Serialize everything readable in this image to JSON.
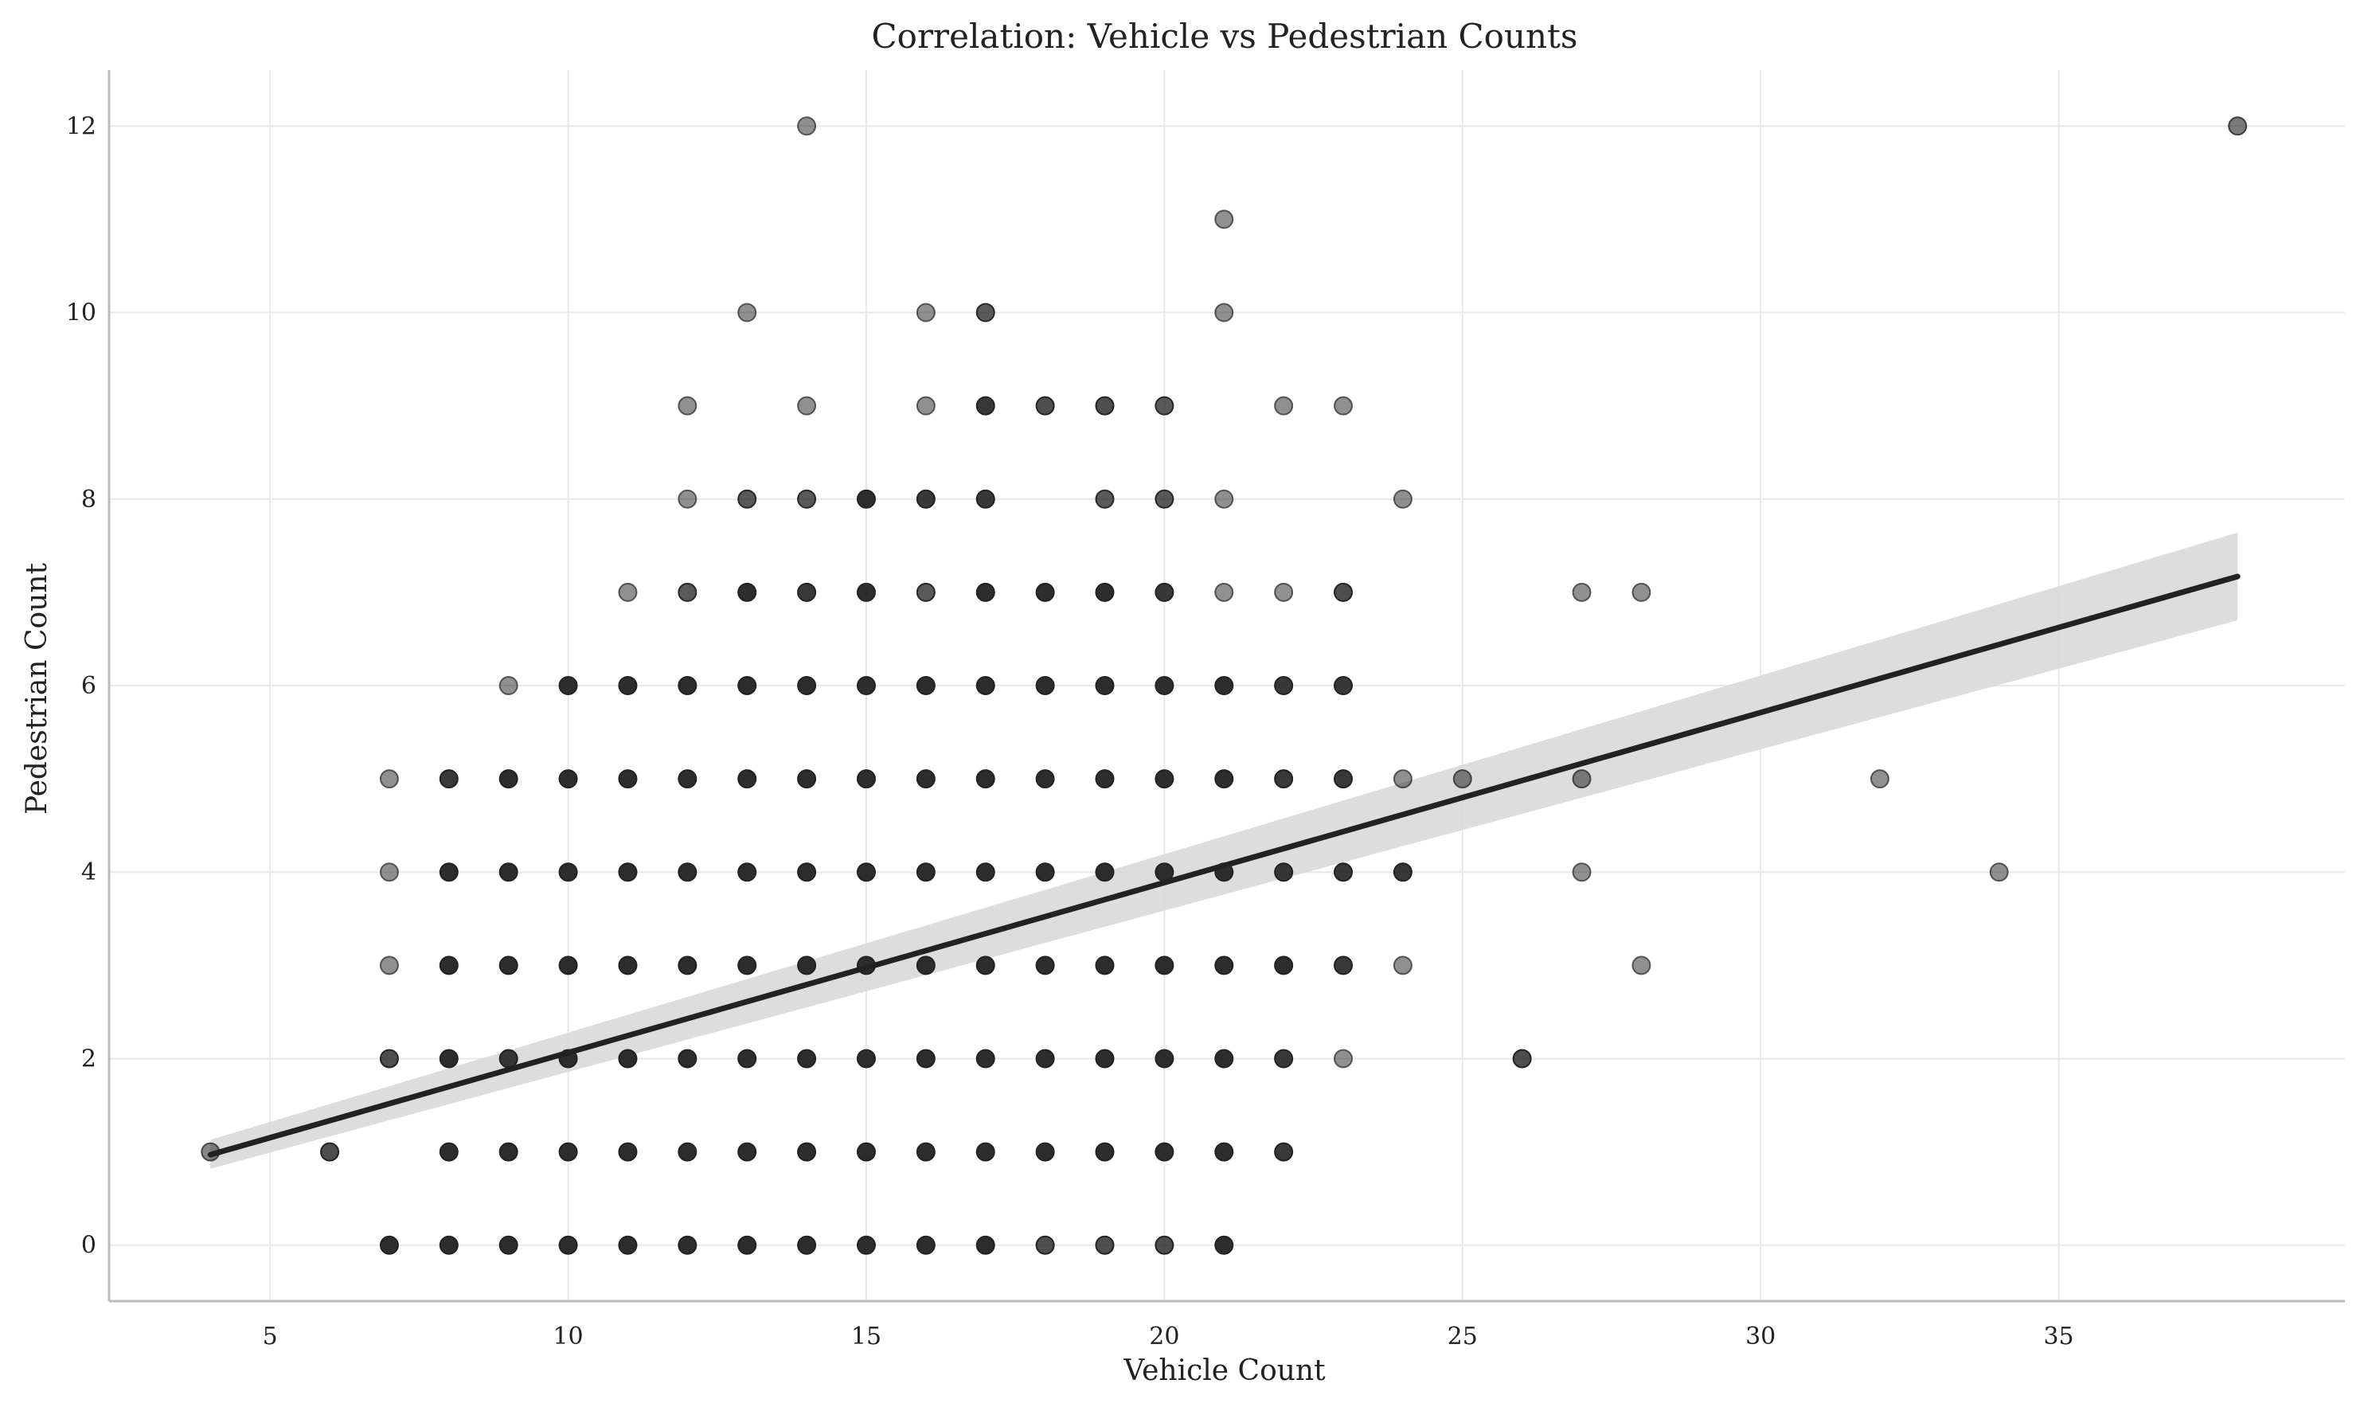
{
  "chart_data": {
    "type": "scatter",
    "title": "Correlation: Vehicle vs Pedestrian Counts",
    "xlabel": "Vehicle Count",
    "ylabel": "Pedestrian Count",
    "xlim": [
      2.3,
      39.8
    ],
    "ylim": [
      -0.6,
      12.6
    ],
    "xticks": [
      5,
      10,
      15,
      20,
      25,
      30,
      35
    ],
    "yticks": [
      0,
      2,
      4,
      6,
      8,
      10,
      12
    ],
    "grid": true,
    "legend": "none",
    "colors": {
      "point": "#222222",
      "line": "#222222",
      "band": "#d9d9d9",
      "grid": "#e8e8e8",
      "spine": "#bbbbbb"
    },
    "points": [
      [
        4,
        1
      ],
      [
        6,
        1
      ],
      [
        7,
        0
      ],
      [
        7,
        2
      ],
      [
        7,
        3
      ],
      [
        7,
        4
      ],
      [
        7,
        5
      ],
      [
        8,
        0
      ],
      [
        8,
        1
      ],
      [
        8,
        2
      ],
      [
        8,
        3
      ],
      [
        8,
        4
      ],
      [
        8,
        5
      ],
      [
        9,
        0
      ],
      [
        9,
        1
      ],
      [
        9,
        2
      ],
      [
        9,
        3
      ],
      [
        9,
        4
      ],
      [
        9,
        5
      ],
      [
        9,
        6
      ],
      [
        10,
        0
      ],
      [
        10,
        1
      ],
      [
        10,
        2
      ],
      [
        10,
        3
      ],
      [
        10,
        4
      ],
      [
        10,
        5
      ],
      [
        10,
        6
      ],
      [
        11,
        0
      ],
      [
        11,
        1
      ],
      [
        11,
        2
      ],
      [
        11,
        3
      ],
      [
        11,
        4
      ],
      [
        11,
        5
      ],
      [
        11,
        6
      ],
      [
        11,
        7
      ],
      [
        12,
        0
      ],
      [
        12,
        1
      ],
      [
        12,
        2
      ],
      [
        12,
        3
      ],
      [
        12,
        4
      ],
      [
        12,
        5
      ],
      [
        12,
        6
      ],
      [
        12,
        7
      ],
      [
        12,
        8
      ],
      [
        12,
        9
      ],
      [
        13,
        0
      ],
      [
        13,
        1
      ],
      [
        13,
        2
      ],
      [
        13,
        3
      ],
      [
        13,
        4
      ],
      [
        13,
        5
      ],
      [
        13,
        6
      ],
      [
        13,
        7
      ],
      [
        13,
        8
      ],
      [
        13,
        10
      ],
      [
        14,
        0
      ],
      [
        14,
        1
      ],
      [
        14,
        2
      ],
      [
        14,
        3
      ],
      [
        14,
        4
      ],
      [
        14,
        5
      ],
      [
        14,
        6
      ],
      [
        14,
        7
      ],
      [
        14,
        8
      ],
      [
        14,
        9
      ],
      [
        14,
        12
      ],
      [
        15,
        0
      ],
      [
        15,
        1
      ],
      [
        15,
        2
      ],
      [
        15,
        3
      ],
      [
        15,
        4
      ],
      [
        15,
        5
      ],
      [
        15,
        6
      ],
      [
        15,
        7
      ],
      [
        15,
        8
      ],
      [
        16,
        0
      ],
      [
        16,
        1
      ],
      [
        16,
        2
      ],
      [
        16,
        3
      ],
      [
        16,
        4
      ],
      [
        16,
        5
      ],
      [
        16,
        6
      ],
      [
        16,
        7
      ],
      [
        16,
        8
      ],
      [
        16,
        9
      ],
      [
        16,
        10
      ],
      [
        17,
        0
      ],
      [
        17,
        1
      ],
      [
        17,
        2
      ],
      [
        17,
        3
      ],
      [
        17,
        4
      ],
      [
        17,
        5
      ],
      [
        17,
        6
      ],
      [
        17,
        7
      ],
      [
        17,
        8
      ],
      [
        17,
        9
      ],
      [
        17,
        10
      ],
      [
        18,
        0
      ],
      [
        18,
        1
      ],
      [
        18,
        2
      ],
      [
        18,
        3
      ],
      [
        18,
        4
      ],
      [
        18,
        5
      ],
      [
        18,
        6
      ],
      [
        18,
        7
      ],
      [
        18,
        9
      ],
      [
        19,
        0
      ],
      [
        19,
        1
      ],
      [
        19,
        2
      ],
      [
        19,
        3
      ],
      [
        19,
        4
      ],
      [
        19,
        5
      ],
      [
        19,
        6
      ],
      [
        19,
        7
      ],
      [
        19,
        8
      ],
      [
        19,
        9
      ],
      [
        20,
        0
      ],
      [
        20,
        1
      ],
      [
        20,
        2
      ],
      [
        20,
        3
      ],
      [
        20,
        4
      ],
      [
        20,
        5
      ],
      [
        20,
        6
      ],
      [
        20,
        7
      ],
      [
        20,
        8
      ],
      [
        20,
        9
      ],
      [
        21,
        0
      ],
      [
        21,
        1
      ],
      [
        21,
        2
      ],
      [
        21,
        3
      ],
      [
        21,
        4
      ],
      [
        21,
        5
      ],
      [
        21,
        6
      ],
      [
        21,
        7
      ],
      [
        21,
        8
      ],
      [
        21,
        10
      ],
      [
        21,
        11
      ],
      [
        22,
        1
      ],
      [
        22,
        2
      ],
      [
        22,
        3
      ],
      [
        22,
        4
      ],
      [
        22,
        5
      ],
      [
        22,
        6
      ],
      [
        22,
        7
      ],
      [
        22,
        9
      ],
      [
        23,
        2
      ],
      [
        23,
        3
      ],
      [
        23,
        4
      ],
      [
        23,
        5
      ],
      [
        23,
        6
      ],
      [
        23,
        7
      ],
      [
        23,
        9
      ],
      [
        24,
        3
      ],
      [
        24,
        4
      ],
      [
        24,
        5
      ],
      [
        24,
        8
      ],
      [
        25,
        5
      ],
      [
        26,
        2
      ],
      [
        27,
        4
      ],
      [
        27,
        5
      ],
      [
        27,
        7
      ],
      [
        28,
        3
      ],
      [
        28,
        7
      ],
      [
        32,
        5
      ],
      [
        34,
        4
      ],
      [
        38,
        12
      ]
    ],
    "point_opacity": [
      0.55,
      0.8,
      0.95,
      0.8,
      0.5,
      0.5,
      0.5,
      0.95,
      0.95,
      0.95,
      0.95,
      0.95,
      0.9,
      0.95,
      0.95,
      0.9,
      0.95,
      0.95,
      0.95,
      0.5,
      0.95,
      0.95,
      0.95,
      0.95,
      0.95,
      0.95,
      0.95,
      0.95,
      0.95,
      0.95,
      0.95,
      0.95,
      0.95,
      0.95,
      0.5,
      0.95,
      0.95,
      0.95,
      0.95,
      0.95,
      0.95,
      0.95,
      0.75,
      0.5,
      0.5,
      0.95,
      0.95,
      0.95,
      0.95,
      0.95,
      0.95,
      0.95,
      0.95,
      0.75,
      0.5,
      0.95,
      0.95,
      0.95,
      0.95,
      0.95,
      0.95,
      0.95,
      0.9,
      0.75,
      0.5,
      0.5,
      0.95,
      0.95,
      0.95,
      0.95,
      0.95,
      0.95,
      0.95,
      0.95,
      0.95,
      0.95,
      0.95,
      0.95,
      0.95,
      0.95,
      0.95,
      0.95,
      0.75,
      0.9,
      0.5,
      0.5,
      0.95,
      0.95,
      0.95,
      0.95,
      0.95,
      0.95,
      0.95,
      0.95,
      0.9,
      0.9,
      0.75,
      0.8,
      0.95,
      0.95,
      0.95,
      0.95,
      0.95,
      0.95,
      0.95,
      0.8,
      0.8,
      0.95,
      0.95,
      0.95,
      0.95,
      0.95,
      0.95,
      0.95,
      0.75,
      0.8,
      0.8,
      0.95,
      0.95,
      0.95,
      0.95,
      0.95,
      0.95,
      0.9,
      0.75,
      0.75,
      0.95,
      0.95,
      0.95,
      0.95,
      0.95,
      0.95,
      0.95,
      0.5,
      0.5,
      0.5,
      0.5,
      0.9,
      0.9,
      0.95,
      0.9,
      0.9,
      0.9,
      0.5,
      0.5,
      0.5,
      0.9,
      0.9,
      0.9,
      0.9,
      0.8,
      0.5,
      0.5,
      0.9,
      0.5,
      0.5,
      0.55,
      0.8,
      0.5,
      0.55,
      0.5,
      0.5,
      0.5,
      0.5,
      0.5,
      0.6
    ],
    "regression": {
      "x": [
        4,
        38
      ],
      "y": [
        0.97,
        7.17
      ],
      "ci_low": [
        0.82,
        6.7
      ],
      "ci_high": [
        1.13,
        7.64
      ]
    }
  }
}
